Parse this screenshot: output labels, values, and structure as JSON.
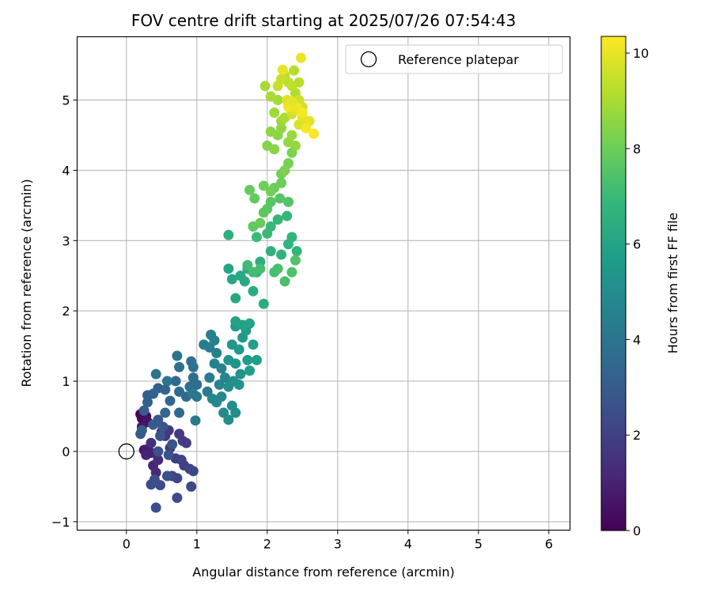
{
  "chart_data": {
    "type": "scatter",
    "title": "FOV centre drift starting at 2025/07/26 07:54:43",
    "xlabel": "Angular distance from reference (arcmin)",
    "ylabel": "Rotation from reference (arcmin)",
    "xlim": [
      -0.7,
      6.3
    ],
    "ylim": [
      -1.12,
      5.9
    ],
    "xticks": [
      0,
      1,
      2,
      3,
      4,
      5,
      6
    ],
    "yticks": [
      -1,
      0,
      1,
      2,
      3,
      4,
      5
    ],
    "grid": true,
    "legend": {
      "placement": "top-right",
      "entries": [
        "Reference platepar"
      ]
    },
    "colorbar": {
      "label": "Hours from first FF file",
      "colormap": "viridis",
      "range": [
        0,
        10.35
      ],
      "ticks": [
        0,
        2,
        4,
        6,
        8,
        10
      ]
    },
    "reference_point": {
      "x": 0,
      "y": 0,
      "label": "Reference platepar"
    },
    "series": [
      {
        "marker": "filled-circle",
        "columns": [
          "x",
          "y",
          "hours"
        ],
        "points": [
          [
            0.2,
            0.53,
            0.1
          ],
          [
            0.22,
            0.47,
            0.2
          ],
          [
            0.25,
            0.55,
            0.3
          ],
          [
            0.28,
            0.5,
            0.4
          ],
          [
            0.3,
            0.42,
            0.5
          ],
          [
            0.22,
            0.35,
            0.6
          ],
          [
            0.25,
            0.02,
            0.7
          ],
          [
            0.3,
            0.03,
            0.8
          ],
          [
            0.35,
            -0.02,
            0.9
          ],
          [
            0.28,
            -0.05,
            1.0
          ],
          [
            0.38,
            -0.2,
            1.1
          ],
          [
            0.42,
            -0.3,
            1.2
          ],
          [
            0.45,
            -0.12,
            1.3
          ],
          [
            0.35,
            0.12,
            1.4
          ],
          [
            0.5,
            0.28,
            1.5
          ],
          [
            0.55,
            0.22,
            1.6
          ],
          [
            0.6,
            0.3,
            1.65
          ],
          [
            0.62,
            0.05,
            1.7
          ],
          [
            0.75,
            0.25,
            1.75
          ],
          [
            0.8,
            0.15,
            1.8
          ],
          [
            0.85,
            0.12,
            1.85
          ],
          [
            0.7,
            -0.1,
            1.9
          ],
          [
            0.82,
            -0.2,
            1.95
          ],
          [
            0.78,
            -0.12,
            2.0
          ],
          [
            0.9,
            -0.25,
            2.05
          ],
          [
            0.65,
            -0.35,
            2.1
          ],
          [
            0.72,
            -0.38,
            2.15
          ],
          [
            0.95,
            -0.28,
            2.2
          ],
          [
            0.92,
            -0.5,
            2.25
          ],
          [
            0.72,
            -0.66,
            2.3
          ],
          [
            0.48,
            -0.48,
            2.35
          ],
          [
            0.4,
            -0.4,
            2.4
          ],
          [
            0.35,
            -0.47,
            2.45
          ],
          [
            0.42,
            -0.8,
            2.5
          ],
          [
            0.58,
            -0.35,
            2.55
          ],
          [
            0.45,
            0.0,
            2.6
          ],
          [
            0.6,
            -0.05,
            2.65
          ],
          [
            0.65,
            0.1,
            2.7
          ],
          [
            0.48,
            0.22,
            2.75
          ],
          [
            0.52,
            0.35,
            2.8
          ],
          [
            0.45,
            0.45,
            2.85
          ],
          [
            0.38,
            0.38,
            2.9
          ],
          [
            0.2,
            0.25,
            2.95
          ],
          [
            0.22,
            0.3,
            3.0
          ],
          [
            0.25,
            0.58,
            3.05
          ],
          [
            0.3,
            0.7,
            3.1
          ],
          [
            0.3,
            0.8,
            3.15
          ],
          [
            0.38,
            0.82,
            3.2
          ],
          [
            0.45,
            0.9,
            3.25
          ],
          [
            0.55,
            0.88,
            3.3
          ],
          [
            0.62,
            0.72,
            3.35
          ],
          [
            0.55,
            0.55,
            3.4
          ],
          [
            0.75,
            0.55,
            3.45
          ],
          [
            0.7,
            1.0,
            3.5
          ],
          [
            0.75,
            0.85,
            3.55
          ],
          [
            0.85,
            0.78,
            3.6
          ],
          [
            0.9,
            0.92,
            3.65
          ],
          [
            0.95,
            1.05,
            3.7
          ],
          [
            1.0,
            0.95,
            3.75
          ],
          [
            0.92,
            1.28,
            3.8
          ],
          [
            0.75,
            1.2,
            3.85
          ],
          [
            0.95,
            1.2,
            3.9
          ],
          [
            0.72,
            1.36,
            3.95
          ],
          [
            0.42,
            1.1,
            4.0
          ],
          [
            0.58,
            1.0,
            4.05
          ],
          [
            0.95,
            0.82,
            4.1
          ],
          [
            1.0,
            0.78,
            4.15
          ],
          [
            0.98,
            0.44,
            4.2
          ],
          [
            1.15,
            0.85,
            4.25
          ],
          [
            1.18,
            1.05,
            4.3
          ],
          [
            1.1,
            1.52,
            4.35
          ],
          [
            1.18,
            1.48,
            4.4
          ],
          [
            1.2,
            1.66,
            4.45
          ],
          [
            1.25,
            1.58,
            4.5
          ],
          [
            1.28,
            1.4,
            4.55
          ],
          [
            1.25,
            1.25,
            4.6
          ],
          [
            1.35,
            1.18,
            4.65
          ],
          [
            1.4,
            1.05,
            4.7
          ],
          [
            1.32,
            0.95,
            4.75
          ],
          [
            1.22,
            0.75,
            4.8
          ],
          [
            1.28,
            0.7,
            4.85
          ],
          [
            1.35,
            0.78,
            4.9
          ],
          [
            1.38,
            0.55,
            4.95
          ],
          [
            1.45,
            0.45,
            5.0
          ],
          [
            1.55,
            0.55,
            5.05
          ],
          [
            1.5,
            0.65,
            5.1
          ],
          [
            1.45,
            0.92,
            5.15
          ],
          [
            1.52,
            1.0,
            5.2
          ],
          [
            1.6,
            0.95,
            5.25
          ],
          [
            1.62,
            1.1,
            5.3
          ],
          [
            1.45,
            1.3,
            5.35
          ],
          [
            1.55,
            1.25,
            5.4
          ],
          [
            1.5,
            1.52,
            5.45
          ],
          [
            1.6,
            1.45,
            5.5
          ],
          [
            1.65,
            1.62,
            5.55
          ],
          [
            1.55,
            1.78,
            5.6
          ],
          [
            1.7,
            1.72,
            5.65
          ],
          [
            1.72,
            1.3,
            5.7
          ],
          [
            1.75,
            1.15,
            5.75
          ],
          [
            1.85,
            1.3,
            5.8
          ],
          [
            1.8,
            1.52,
            5.85
          ],
          [
            1.55,
            1.85,
            5.9
          ],
          [
            1.65,
            1.8,
            5.95
          ],
          [
            1.75,
            1.82,
            6.0
          ],
          [
            1.45,
            2.6,
            6.05
          ],
          [
            1.5,
            2.45,
            6.1
          ],
          [
            1.55,
            2.18,
            6.15
          ],
          [
            1.62,
            2.5,
            6.2
          ],
          [
            1.68,
            2.42,
            6.25
          ],
          [
            1.72,
            2.6,
            6.3
          ],
          [
            1.8,
            2.28,
            6.35
          ],
          [
            1.95,
            2.1,
            6.4
          ],
          [
            1.85,
            2.55,
            6.45
          ],
          [
            1.9,
            2.7,
            6.5
          ],
          [
            1.45,
            3.08,
            6.55
          ],
          [
            2.05,
            2.85,
            6.6
          ],
          [
            2.2,
            2.8,
            6.65
          ],
          [
            2.3,
            2.95,
            6.7
          ],
          [
            2.35,
            3.05,
            6.75
          ],
          [
            2.42,
            2.85,
            6.8
          ],
          [
            2.28,
            3.35,
            6.85
          ],
          [
            2.15,
            3.3,
            6.9
          ],
          [
            2.05,
            3.2,
            6.95
          ],
          [
            2.0,
            3.1,
            7.0
          ],
          [
            1.85,
            3.05,
            7.05
          ],
          [
            1.72,
            2.65,
            7.1
          ],
          [
            1.8,
            2.55,
            7.15
          ],
          [
            1.9,
            2.6,
            7.2
          ],
          [
            2.1,
            2.55,
            7.25
          ],
          [
            2.15,
            2.6,
            7.3
          ],
          [
            2.25,
            2.42,
            7.35
          ],
          [
            2.35,
            2.55,
            7.4
          ],
          [
            2.4,
            2.72,
            7.45
          ],
          [
            2.3,
            3.55,
            7.5
          ],
          [
            2.18,
            3.6,
            7.55
          ],
          [
            2.05,
            3.55,
            7.6
          ],
          [
            2.0,
            3.45,
            7.65
          ],
          [
            1.95,
            3.4,
            7.7
          ],
          [
            1.8,
            3.2,
            7.75
          ],
          [
            1.82,
            3.6,
            7.8
          ],
          [
            1.75,
            3.72,
            7.85
          ],
          [
            1.9,
            3.25,
            7.9
          ],
          [
            2.1,
            3.75,
            7.95
          ],
          [
            2.2,
            3.82,
            8.0
          ],
          [
            1.95,
            3.78,
            8.05
          ],
          [
            2.05,
            3.7,
            8.1
          ],
          [
            2.2,
            3.95,
            8.15
          ],
          [
            2.3,
            4.1,
            8.2
          ],
          [
            2.35,
            4.25,
            8.25
          ],
          [
            2.25,
            4.0,
            8.3
          ],
          [
            2.0,
            4.35,
            8.4
          ],
          [
            2.1,
            4.3,
            8.45
          ],
          [
            2.15,
            4.5,
            8.5
          ],
          [
            2.05,
            4.55,
            8.55
          ],
          [
            2.2,
            4.6,
            8.6
          ],
          [
            2.3,
            4.4,
            8.65
          ],
          [
            2.4,
            4.35,
            8.7
          ],
          [
            2.35,
            4.5,
            8.75
          ],
          [
            2.2,
            4.7,
            8.8
          ],
          [
            2.1,
            4.82,
            8.85
          ],
          [
            2.15,
            5.0,
            8.9
          ],
          [
            2.05,
            5.05,
            9.0
          ],
          [
            2.25,
            4.75,
            9.05
          ],
          [
            2.3,
            4.95,
            9.1
          ],
          [
            2.4,
            5.1,
            9.15
          ],
          [
            2.45,
            5.25,
            9.25
          ],
          [
            2.35,
            5.2,
            9.3
          ],
          [
            2.25,
            5.35,
            9.35
          ],
          [
            2.3,
            5.25,
            9.4
          ],
          [
            2.2,
            5.3,
            9.45
          ],
          [
            2.15,
            5.2,
            9.5
          ],
          [
            2.45,
            5.0,
            9.55
          ],
          [
            2.35,
            4.8,
            9.6
          ],
          [
            2.5,
            4.9,
            9.65
          ],
          [
            2.55,
            4.7,
            9.7
          ],
          [
            2.45,
            4.65,
            9.75
          ],
          [
            2.38,
            4.85,
            9.8
          ],
          [
            2.28,
            5.0,
            9.85
          ],
          [
            2.5,
            4.75,
            9.9
          ],
          [
            2.6,
            4.7,
            9.95
          ],
          [
            2.22,
            5.43,
            10.0
          ],
          [
            2.48,
            5.6,
            10.05
          ],
          [
            2.42,
            4.9,
            10.1
          ],
          [
            2.3,
            4.9,
            10.15
          ],
          [
            2.55,
            4.6,
            10.2
          ],
          [
            2.66,
            4.52,
            10.3
          ],
          [
            1.97,
            5.2,
            8.95
          ],
          [
            2.38,
            5.42,
            9.2
          ],
          [
            2.5,
            4.82,
            10.25
          ],
          [
            2.35,
            4.98,
            10.0
          ]
        ]
      }
    ]
  }
}
